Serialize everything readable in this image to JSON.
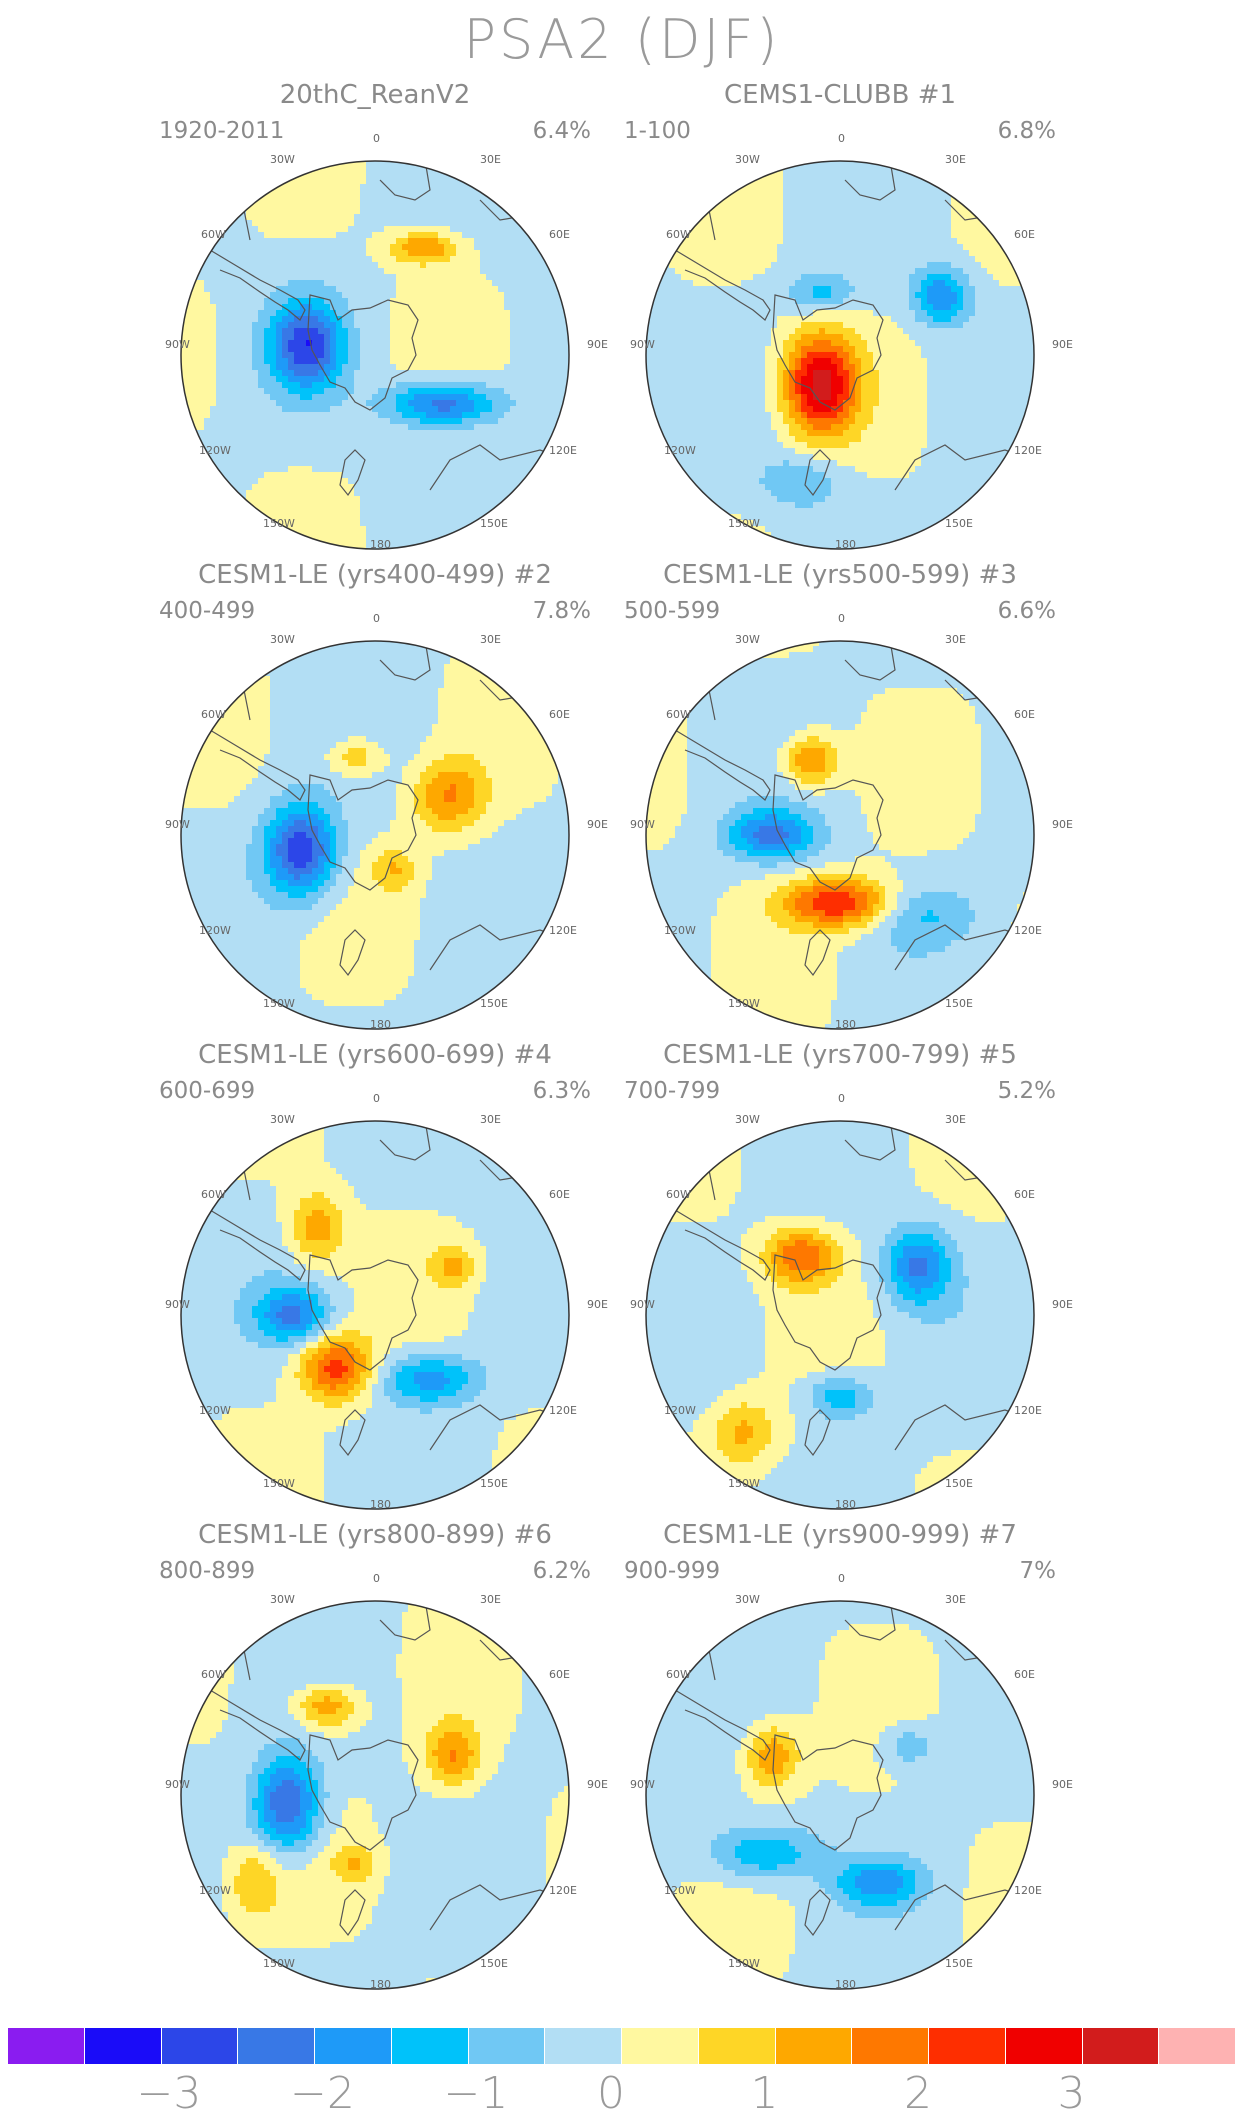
{
  "title": "PSA2 (DJF)",
  "lon_labels": {
    "l0": "0",
    "l30w": "30W",
    "l30e": "30E",
    "l60w": "60W",
    "l60e": "60E",
    "l90w": "90W",
    "l90e": "90E",
    "l120w": "120W",
    "l120e": "120E",
    "l150w": "150W",
    "l150e": "150E",
    "l180": "180"
  },
  "panels": [
    {
      "title": "20thC_ReanV2",
      "years": "1920-2011",
      "pct": "6.4%",
      "blobs": [
        [
          0.25,
          -0.55,
          0.12,
          0.06,
          1.6
        ],
        [
          -0.35,
          -0.05,
          0.13,
          0.16,
          -2.6
        ],
        [
          0.35,
          0.25,
          0.2,
          0.08,
          -2.3
        ]
      ]
    },
    {
      "title": "CEMS1-CLUBB      #1",
      "years": "1-100",
      "pct": "6.8%",
      "blobs": [
        [
          -0.1,
          0.15,
          0.13,
          0.18,
          3.2
        ],
        [
          0.52,
          -0.3,
          0.1,
          0.1,
          -1.9
        ],
        [
          -0.1,
          -0.32,
          0.12,
          0.07,
          -1.1
        ],
        [
          -0.2,
          0.65,
          0.15,
          0.1,
          -0.9
        ]
      ]
    },
    {
      "title": "CESM1-LE (yrs400-499) #2",
      "years": "400-499",
      "pct": "7.8%",
      "blobs": [
        [
          -0.38,
          0.08,
          0.13,
          0.17,
          -2.8
        ],
        [
          0.38,
          -0.2,
          0.13,
          0.13,
          1.6
        ],
        [
          -0.1,
          -0.4,
          0.1,
          0.07,
          1.1
        ],
        [
          0.1,
          0.18,
          0.08,
          0.08,
          1.0
        ]
      ]
    },
    {
      "title": "CESM1-LE (yrs500-599) #3",
      "years": "500-599",
      "pct": "6.6%",
      "blobs": [
        [
          0.0,
          0.35,
          0.2,
          0.09,
          2.6
        ],
        [
          -0.35,
          0.0,
          0.16,
          0.09,
          -2.0
        ],
        [
          -0.15,
          -0.38,
          0.1,
          0.09,
          1.8
        ],
        [
          0.4,
          0.4,
          0.2,
          0.1,
          -0.9
        ]
      ]
    },
    {
      "title": "CESM1-LE (yrs600-699) #4",
      "years": "600-699",
      "pct": "6.3%",
      "blobs": [
        [
          -0.3,
          -0.45,
          0.1,
          0.13,
          1.4
        ],
        [
          -0.42,
          0.0,
          0.13,
          0.1,
          -1.9
        ],
        [
          -0.2,
          0.27,
          0.13,
          0.12,
          2.3
        ],
        [
          0.28,
          0.33,
          0.18,
          0.09,
          -1.7
        ],
        [
          0.4,
          -0.25,
          0.08,
          0.08,
          1.1
        ]
      ]
    },
    {
      "title": "CESM1-LE (yrs700-799) #5",
      "years": "700-799",
      "pct": "5.2%",
      "blobs": [
        [
          -0.2,
          -0.3,
          0.13,
          0.1,
          2.0
        ],
        [
          0.4,
          -0.25,
          0.12,
          0.14,
          -2.0
        ],
        [
          0.0,
          0.42,
          0.12,
          0.08,
          -1.4
        ],
        [
          -0.5,
          0.6,
          0.12,
          0.12,
          1.2
        ]
      ]
    },
    {
      "title": "CESM1-LE (yrs800-899) #6",
      "years": "800-899",
      "pct": "6.2%",
      "blobs": [
        [
          -0.45,
          0.05,
          0.12,
          0.17,
          -2.6
        ],
        [
          -0.25,
          -0.45,
          0.11,
          0.08,
          1.6
        ],
        [
          0.4,
          -0.2,
          0.1,
          0.12,
          1.6
        ],
        [
          -0.62,
          0.45,
          0.1,
          0.14,
          1.0
        ],
        [
          -0.1,
          0.35,
          0.08,
          0.07,
          1.0
        ]
      ]
    },
    {
      "title": "CESM1-LE (yrs900-999) #7",
      "years": "900-999",
      "pct": "7%",
      "blobs": [
        [
          -0.35,
          -0.2,
          0.1,
          0.12,
          1.6
        ],
        [
          -0.4,
          0.3,
          0.2,
          0.1,
          -1.5
        ],
        [
          0.2,
          0.45,
          0.15,
          0.08,
          -1.6
        ],
        [
          0.35,
          -0.25,
          0.1,
          0.08,
          -0.9
        ]
      ]
    }
  ],
  "colorbar": {
    "colors": [
      "#8a1cf0",
      "#1a0cf8",
      "#2c46e8",
      "#3878e6",
      "#1e9af8",
      "#00c2fa",
      "#70c8f4",
      "#b2def4",
      "#fff8a0",
      "#fed626",
      "#fea800",
      "#fe7800",
      "#fe2e00",
      "#f00000",
      "#d21c1c",
      "#feb2b2"
    ],
    "ticks": [
      "−3",
      "−2",
      "−1",
      "0",
      "1",
      "2",
      "3"
    ]
  }
}
